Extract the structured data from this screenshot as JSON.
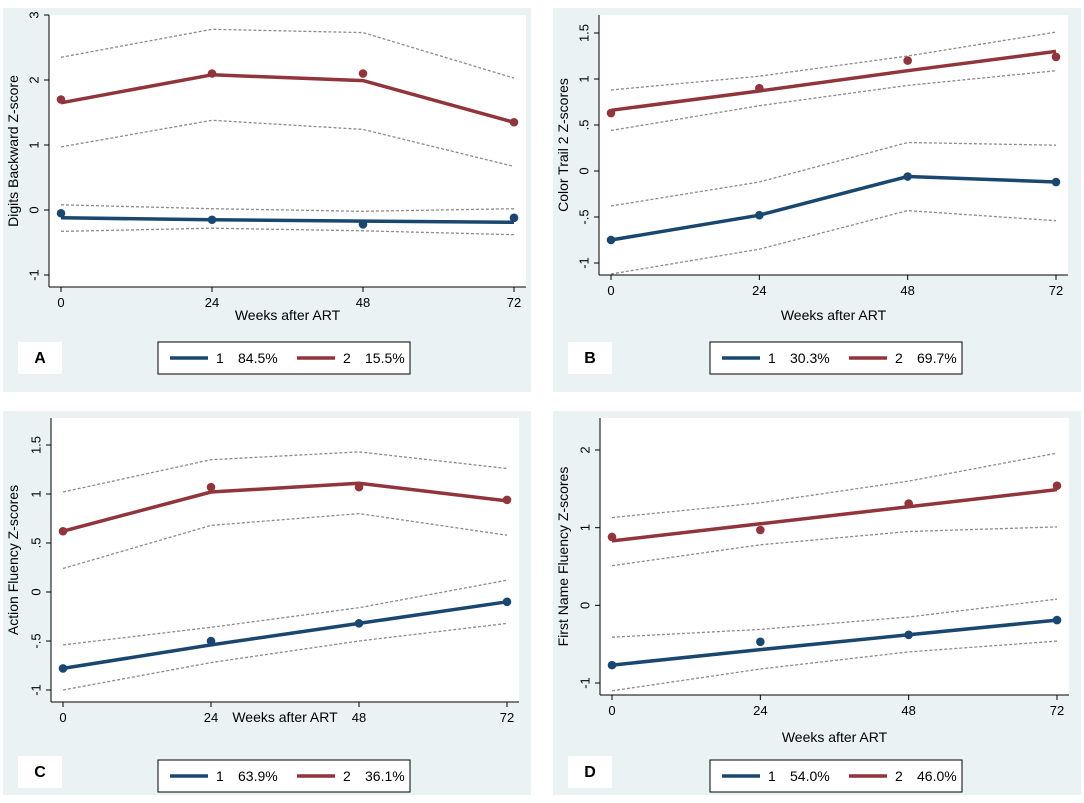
{
  "colors": {
    "panel_bg": "#eaf2f3",
    "series1": "#1a476f",
    "series2": "#90353b",
    "ci": "#8c8c8c",
    "axis": "#000000"
  },
  "chart_data": [
    {
      "panel": "A",
      "type": "line",
      "xlabel": "Weeks after ART",
      "ylabel": "Digits Backward Z-score",
      "x": [
        0,
        24,
        48,
        72
      ],
      "xlim": [
        0,
        72
      ],
      "ylim": [
        -1,
        3
      ],
      "yticks": [
        -1,
        0,
        1,
        2,
        3
      ],
      "ytick_labels": [
        "-1",
        "0",
        "1",
        "2",
        "3"
      ],
      "series": [
        {
          "name": "1",
          "share": "84.5%",
          "fit": [
            -0.12,
            -0.15,
            -0.17,
            -0.19
          ],
          "observed": [
            -0.05,
            -0.15,
            -0.22,
            -0.12
          ],
          "ci_upper": [
            0.08,
            0.02,
            -0.02,
            0.02
          ],
          "ci_lower": [
            -0.33,
            -0.28,
            -0.32,
            -0.38
          ]
        },
        {
          "name": "2",
          "share": "15.5%",
          "fit": [
            1.65,
            2.08,
            1.99,
            1.35
          ],
          "observed": [
            1.7,
            2.1,
            2.1,
            1.35
          ],
          "ci_upper": [
            2.35,
            2.78,
            2.73,
            2.03
          ],
          "ci_lower": [
            0.97,
            1.38,
            1.24,
            0.67
          ]
        }
      ]
    },
    {
      "panel": "B",
      "type": "line",
      "xlabel": "Weeks after ART",
      "ylabel": "Color Trail 2 Z-scores",
      "x": [
        0,
        24,
        48,
        72
      ],
      "xlim": [
        0,
        72
      ],
      "ylim": [
        -1,
        1.5
      ],
      "yticks": [
        -1,
        -0.5,
        0,
        0.5,
        1,
        1.5
      ],
      "ytick_labels": [
        "-1",
        "-.5",
        "0",
        ".5",
        "1",
        "1.5"
      ],
      "series": [
        {
          "name": "1",
          "share": "30.3%",
          "fit": [
            -0.75,
            -0.48,
            -0.06,
            -0.12
          ],
          "observed": [
            -0.75,
            -0.48,
            -0.06,
            -0.12
          ],
          "ci_upper": [
            -0.38,
            -0.12,
            0.31,
            0.28
          ],
          "ci_lower": [
            -1.12,
            -0.85,
            -0.43,
            -0.54
          ]
        },
        {
          "name": "2",
          "share": "69.7%",
          "fit": [
            0.66,
            0.87,
            1.09,
            1.3
          ],
          "observed": [
            0.63,
            0.9,
            1.2,
            1.24
          ],
          "ci_upper": [
            0.88,
            1.03,
            1.25,
            1.51
          ],
          "ci_lower": [
            0.44,
            0.71,
            0.93,
            1.09
          ]
        }
      ]
    },
    {
      "panel": "C",
      "type": "line",
      "xlabel": "Weeks after ART",
      "ylabel": "Action Fluency Z-scores",
      "x": [
        0,
        24,
        48,
        72
      ],
      "xlim": [
        0,
        72
      ],
      "ylim": [
        -1,
        1.5
      ],
      "yticks": [
        -1,
        -0.5,
        0,
        0.5,
        1,
        1.5
      ],
      "ytick_labels": [
        "-1",
        "-.5",
        "0",
        ".5",
        "1",
        "1.5"
      ],
      "series": [
        {
          "name": "1",
          "share": "63.9%",
          "fit": [
            -0.78,
            -0.54,
            -0.32,
            -0.1
          ],
          "observed": [
            -0.78,
            -0.5,
            -0.32,
            -0.1
          ],
          "ci_upper": [
            -0.54,
            -0.36,
            -0.16,
            0.12
          ],
          "ci_lower": [
            -1.0,
            -0.72,
            -0.5,
            -0.32
          ]
        },
        {
          "name": "2",
          "share": "36.1%",
          "fit": [
            0.62,
            1.02,
            1.11,
            0.93
          ],
          "observed": [
            0.62,
            1.07,
            1.07,
            0.94
          ],
          "ci_upper": [
            1.02,
            1.35,
            1.43,
            1.26
          ],
          "ci_lower": [
            0.24,
            0.68,
            0.8,
            0.58
          ]
        }
      ]
    },
    {
      "panel": "D",
      "type": "line",
      "xlabel": "Weeks after ART",
      "ylabel": "First Name Fluency Z-scores",
      "x": [
        0,
        24,
        48,
        72
      ],
      "xlim": [
        0,
        72
      ],
      "ylim": [
        -1,
        2
      ],
      "yticks": [
        -1,
        0,
        1,
        2
      ],
      "ytick_labels": [
        "-1",
        "0",
        "1",
        "2"
      ],
      "series": [
        {
          "name": "1",
          "share": "54.0%",
          "fit": [
            -0.77,
            -0.57,
            -0.38,
            -0.19
          ],
          "observed": [
            -0.77,
            -0.47,
            -0.38,
            -0.19
          ],
          "ci_upper": [
            -0.41,
            -0.31,
            -0.15,
            0.08
          ],
          "ci_lower": [
            -1.1,
            -0.82,
            -0.6,
            -0.46
          ]
        },
        {
          "name": "2",
          "share": "46.0%",
          "fit": [
            0.83,
            1.05,
            1.27,
            1.49
          ],
          "observed": [
            0.88,
            0.97,
            1.31,
            1.54
          ],
          "ci_upper": [
            1.13,
            1.32,
            1.6,
            1.96
          ],
          "ci_lower": [
            0.51,
            0.78,
            0.95,
            1.01
          ]
        }
      ]
    }
  ]
}
